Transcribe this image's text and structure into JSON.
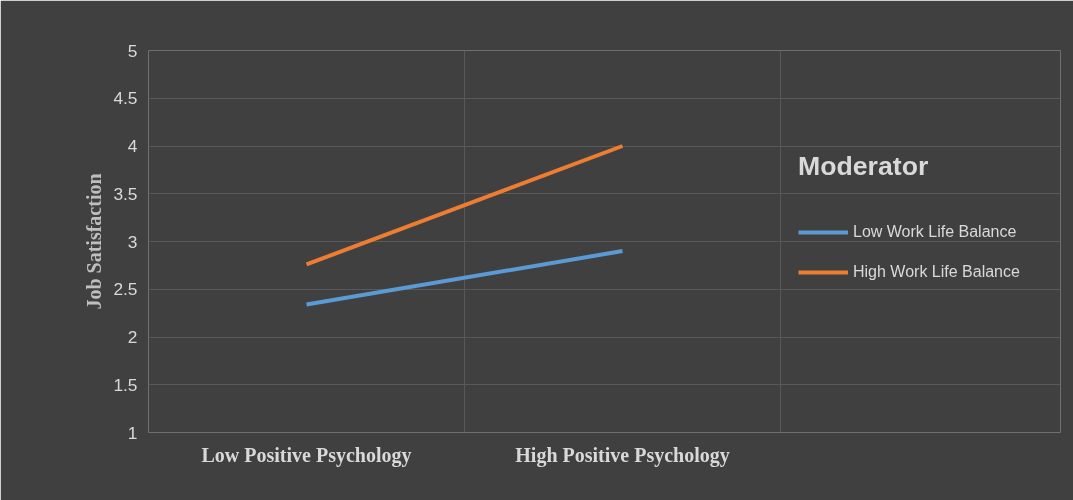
{
  "chart_data": {
    "type": "line",
    "ylabel": "Job Satisfaction",
    "legend_title": "Moderator",
    "categories": [
      "Low Positive Psychology",
      "High Positive Psychology"
    ],
    "series": [
      {
        "name": "Low Work Life Balance",
        "color": "#5b9bd5",
        "values": [
          2.34,
          2.9
        ]
      },
      {
        "name": "High Work Life Balance",
        "color": "#ed7d31",
        "values": [
          2.76,
          4.0
        ]
      }
    ],
    "ylim": [
      1,
      5
    ],
    "yticks": [
      1,
      1.5,
      2,
      2.5,
      3,
      3.5,
      4,
      4.5,
      5
    ],
    "grid": true,
    "legend": "right",
    "marker": "none",
    "line_style": "solid"
  }
}
